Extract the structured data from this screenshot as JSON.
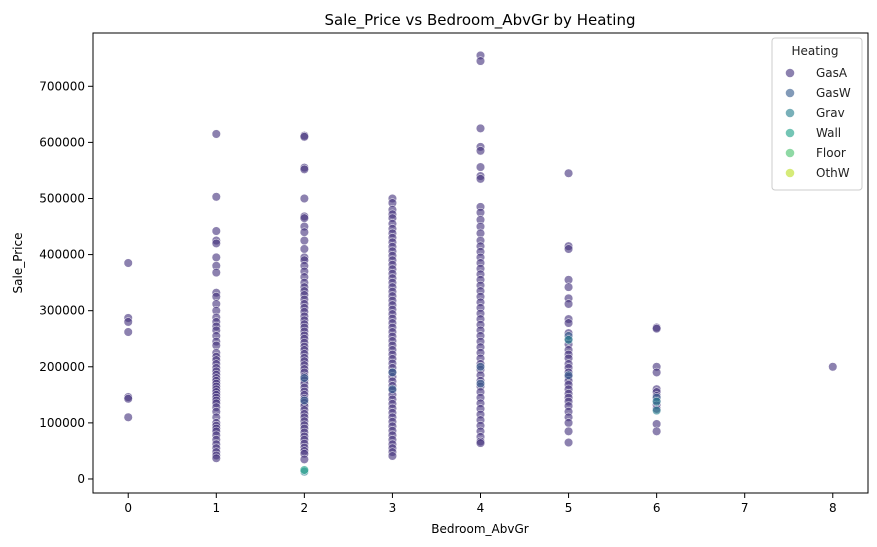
{
  "chart_data": {
    "type": "scatter",
    "title": "Sale_Price vs Bedroom_AbvGr by Heating",
    "xlabel": "Bedroom_AbvGr",
    "ylabel": "Sale_Price",
    "xlim": [
      -0.4,
      8.4
    ],
    "ylim": [
      -25000,
      795000
    ],
    "x_ticks": [
      0,
      1,
      2,
      3,
      4,
      5,
      6,
      7,
      8
    ],
    "y_ticks": [
      0,
      100000,
      200000,
      300000,
      400000,
      500000,
      600000,
      700000
    ],
    "grid": false,
    "legend": {
      "title": "Heating",
      "placement": "top-right",
      "entries": [
        "GasA",
        "GasW",
        "Grav",
        "Wall",
        "Floor",
        "OthW"
      ]
    },
    "colors": {
      "GasA": "#46337e",
      "GasW": "#365c8d",
      "Grav": "#277f8e",
      "Wall": "#1fa187",
      "Floor": "#4ac16d",
      "OthW": "#bddf26"
    },
    "series": [
      {
        "name": "GasA",
        "points": [
          [
            0,
            385000
          ],
          [
            0,
            287000
          ],
          [
            0,
            280000
          ],
          [
            0,
            262000
          ],
          [
            0,
            146000
          ],
          [
            0,
            143000
          ],
          [
            0,
            110000
          ],
          [
            1,
            615000
          ],
          [
            1,
            503000
          ],
          [
            1,
            442000
          ],
          [
            1,
            425000
          ],
          [
            1,
            420000
          ],
          [
            1,
            395000
          ],
          [
            1,
            380000
          ],
          [
            1,
            368000
          ],
          [
            1,
            332000
          ],
          [
            1,
            325000
          ],
          [
            1,
            312000
          ],
          [
            1,
            300000
          ],
          [
            1,
            288000
          ],
          [
            1,
            280000
          ],
          [
            1,
            272000
          ],
          [
            1,
            265000
          ],
          [
            1,
            255000
          ],
          [
            1,
            245000
          ],
          [
            1,
            238000
          ],
          [
            1,
            225000
          ],
          [
            1,
            218000
          ],
          [
            1,
            212000
          ],
          [
            1,
            205000
          ],
          [
            1,
            198000
          ],
          [
            1,
            192000
          ],
          [
            1,
            186000
          ],
          [
            1,
            180000
          ],
          [
            1,
            175000
          ],
          [
            1,
            170000
          ],
          [
            1,
            165000
          ],
          [
            1,
            160000
          ],
          [
            1,
            155000
          ],
          [
            1,
            150000
          ],
          [
            1,
            145000
          ],
          [
            1,
            140000
          ],
          [
            1,
            135000
          ],
          [
            1,
            128000
          ],
          [
            1,
            120000
          ],
          [
            1,
            110000
          ],
          [
            1,
            100000
          ],
          [
            1,
            95000
          ],
          [
            1,
            90000
          ],
          [
            1,
            85000
          ],
          [
            1,
            78000
          ],
          [
            1,
            70000
          ],
          [
            1,
            62000
          ],
          [
            1,
            55000
          ],
          [
            1,
            48000
          ],
          [
            1,
            42000
          ],
          [
            1,
            37000
          ],
          [
            2,
            612000
          ],
          [
            2,
            610000
          ],
          [
            2,
            555000
          ],
          [
            2,
            552000
          ],
          [
            2,
            500000
          ],
          [
            2,
            468000
          ],
          [
            2,
            465000
          ],
          [
            2,
            450000
          ],
          [
            2,
            440000
          ],
          [
            2,
            425000
          ],
          [
            2,
            410000
          ],
          [
            2,
            395000
          ],
          [
            2,
            390000
          ],
          [
            2,
            380000
          ],
          [
            2,
            370000
          ],
          [
            2,
            360000
          ],
          [
            2,
            350000
          ],
          [
            2,
            342000
          ],
          [
            2,
            335000
          ],
          [
            2,
            328000
          ],
          [
            2,
            320000
          ],
          [
            2,
            312000
          ],
          [
            2,
            305000
          ],
          [
            2,
            298000
          ],
          [
            2,
            290000
          ],
          [
            2,
            283000
          ],
          [
            2,
            276000
          ],
          [
            2,
            270000
          ],
          [
            2,
            263000
          ],
          [
            2,
            256000
          ],
          [
            2,
            250000
          ],
          [
            2,
            243000
          ],
          [
            2,
            236000
          ],
          [
            2,
            230000
          ],
          [
            2,
            223000
          ],
          [
            2,
            216000
          ],
          [
            2,
            210000
          ],
          [
            2,
            203000
          ],
          [
            2,
            196000
          ],
          [
            2,
            190000
          ],
          [
            2,
            183000
          ],
          [
            2,
            176000
          ],
          [
            2,
            170000
          ],
          [
            2,
            163000
          ],
          [
            2,
            156000
          ],
          [
            2,
            150000
          ],
          [
            2,
            143000
          ],
          [
            2,
            136000
          ],
          [
            2,
            130000
          ],
          [
            2,
            123000
          ],
          [
            2,
            116000
          ],
          [
            2,
            110000
          ],
          [
            2,
            103000
          ],
          [
            2,
            96000
          ],
          [
            2,
            90000
          ],
          [
            2,
            83000
          ],
          [
            2,
            76000
          ],
          [
            2,
            70000
          ],
          [
            2,
            63000
          ],
          [
            2,
            56000
          ],
          [
            2,
            50000
          ],
          [
            2,
            45000
          ],
          [
            2,
            35000
          ],
          [
            3,
            500000
          ],
          [
            3,
            492000
          ],
          [
            3,
            480000
          ],
          [
            3,
            472000
          ],
          [
            3,
            465000
          ],
          [
            3,
            455000
          ],
          [
            3,
            446000
          ],
          [
            3,
            438000
          ],
          [
            3,
            430000
          ],
          [
            3,
            422000
          ],
          [
            3,
            414000
          ],
          [
            3,
            406000
          ],
          [
            3,
            398000
          ],
          [
            3,
            390000
          ],
          [
            3,
            382000
          ],
          [
            3,
            374000
          ],
          [
            3,
            366000
          ],
          [
            3,
            358000
          ],
          [
            3,
            350000
          ],
          [
            3,
            342000
          ],
          [
            3,
            334000
          ],
          [
            3,
            326000
          ],
          [
            3,
            318000
          ],
          [
            3,
            310000
          ],
          [
            3,
            302000
          ],
          [
            3,
            294000
          ],
          [
            3,
            286000
          ],
          [
            3,
            278000
          ],
          [
            3,
            270000
          ],
          [
            3,
            262000
          ],
          [
            3,
            254000
          ],
          [
            3,
            246000
          ],
          [
            3,
            238000
          ],
          [
            3,
            230000
          ],
          [
            3,
            222000
          ],
          [
            3,
            214000
          ],
          [
            3,
            206000
          ],
          [
            3,
            198000
          ],
          [
            3,
            190000
          ],
          [
            3,
            182000
          ],
          [
            3,
            174000
          ],
          [
            3,
            166000
          ],
          [
            3,
            158000
          ],
          [
            3,
            150000
          ],
          [
            3,
            142000
          ],
          [
            3,
            134000
          ],
          [
            3,
            126000
          ],
          [
            3,
            118000
          ],
          [
            3,
            110000
          ],
          [
            3,
            102000
          ],
          [
            3,
            94000
          ],
          [
            3,
            86000
          ],
          [
            3,
            78000
          ],
          [
            3,
            70000
          ],
          [
            3,
            62000
          ],
          [
            3,
            55000
          ],
          [
            3,
            48000
          ],
          [
            3,
            41000
          ],
          [
            4,
            755000
          ],
          [
            4,
            745000
          ],
          [
            4,
            625000
          ],
          [
            4,
            592000
          ],
          [
            4,
            585000
          ],
          [
            4,
            556000
          ],
          [
            4,
            540000
          ],
          [
            4,
            535000
          ],
          [
            4,
            485000
          ],
          [
            4,
            475000
          ],
          [
            4,
            462000
          ],
          [
            4,
            450000
          ],
          [
            4,
            438000
          ],
          [
            4,
            425000
          ],
          [
            4,
            415000
          ],
          [
            4,
            405000
          ],
          [
            4,
            395000
          ],
          [
            4,
            385000
          ],
          [
            4,
            375000
          ],
          [
            4,
            365000
          ],
          [
            4,
            355000
          ],
          [
            4,
            345000
          ],
          [
            4,
            335000
          ],
          [
            4,
            325000
          ],
          [
            4,
            315000
          ],
          [
            4,
            305000
          ],
          [
            4,
            295000
          ],
          [
            4,
            285000
          ],
          [
            4,
            275000
          ],
          [
            4,
            265000
          ],
          [
            4,
            255000
          ],
          [
            4,
            245000
          ],
          [
            4,
            235000
          ],
          [
            4,
            225000
          ],
          [
            4,
            215000
          ],
          [
            4,
            205000
          ],
          [
            4,
            195000
          ],
          [
            4,
            185000
          ],
          [
            4,
            175000
          ],
          [
            4,
            165000
          ],
          [
            4,
            155000
          ],
          [
            4,
            145000
          ],
          [
            4,
            135000
          ],
          [
            4,
            125000
          ],
          [
            4,
            115000
          ],
          [
            4,
            105000
          ],
          [
            4,
            95000
          ],
          [
            4,
            85000
          ],
          [
            4,
            75000
          ],
          [
            4,
            67000
          ],
          [
            4,
            64000
          ],
          [
            5,
            545000
          ],
          [
            5,
            415000
          ],
          [
            5,
            410000
          ],
          [
            5,
            355000
          ],
          [
            5,
            342000
          ],
          [
            5,
            322000
          ],
          [
            5,
            312000
          ],
          [
            5,
            285000
          ],
          [
            5,
            278000
          ],
          [
            5,
            260000
          ],
          [
            5,
            250000
          ],
          [
            5,
            240000
          ],
          [
            5,
            230000
          ],
          [
            5,
            222000
          ],
          [
            5,
            215000
          ],
          [
            5,
            205000
          ],
          [
            5,
            198000
          ],
          [
            5,
            190000
          ],
          [
            5,
            182000
          ],
          [
            5,
            175000
          ],
          [
            5,
            168000
          ],
          [
            5,
            160000
          ],
          [
            5,
            152000
          ],
          [
            5,
            145000
          ],
          [
            5,
            138000
          ],
          [
            5,
            130000
          ],
          [
            5,
            120000
          ],
          [
            5,
            110000
          ],
          [
            5,
            100000
          ],
          [
            5,
            85000
          ],
          [
            5,
            65000
          ],
          [
            6,
            270000
          ],
          [
            6,
            268000
          ],
          [
            6,
            200000
          ],
          [
            6,
            190000
          ],
          [
            6,
            160000
          ],
          [
            6,
            155000
          ],
          [
            6,
            148000
          ],
          [
            6,
            140000
          ],
          [
            6,
            132000
          ],
          [
            6,
            125000
          ],
          [
            6,
            98000
          ],
          [
            6,
            85000
          ],
          [
            8,
            200000
          ]
        ]
      },
      {
        "name": "GasW",
        "points": [
          [
            2,
            180000
          ],
          [
            2,
            140000
          ],
          [
            3,
            190000
          ],
          [
            3,
            160000
          ],
          [
            4,
            200000
          ],
          [
            4,
            170000
          ],
          [
            5,
            255000
          ],
          [
            5,
            185000
          ],
          [
            6,
            145000
          ]
        ]
      },
      {
        "name": "Grav",
        "points": [
          [
            2,
            13000
          ],
          [
            5,
            248000
          ],
          [
            6,
            138000
          ],
          [
            6,
            122000
          ]
        ]
      },
      {
        "name": "Wall",
        "points": [
          [
            2,
            16000
          ]
        ]
      }
    ]
  }
}
